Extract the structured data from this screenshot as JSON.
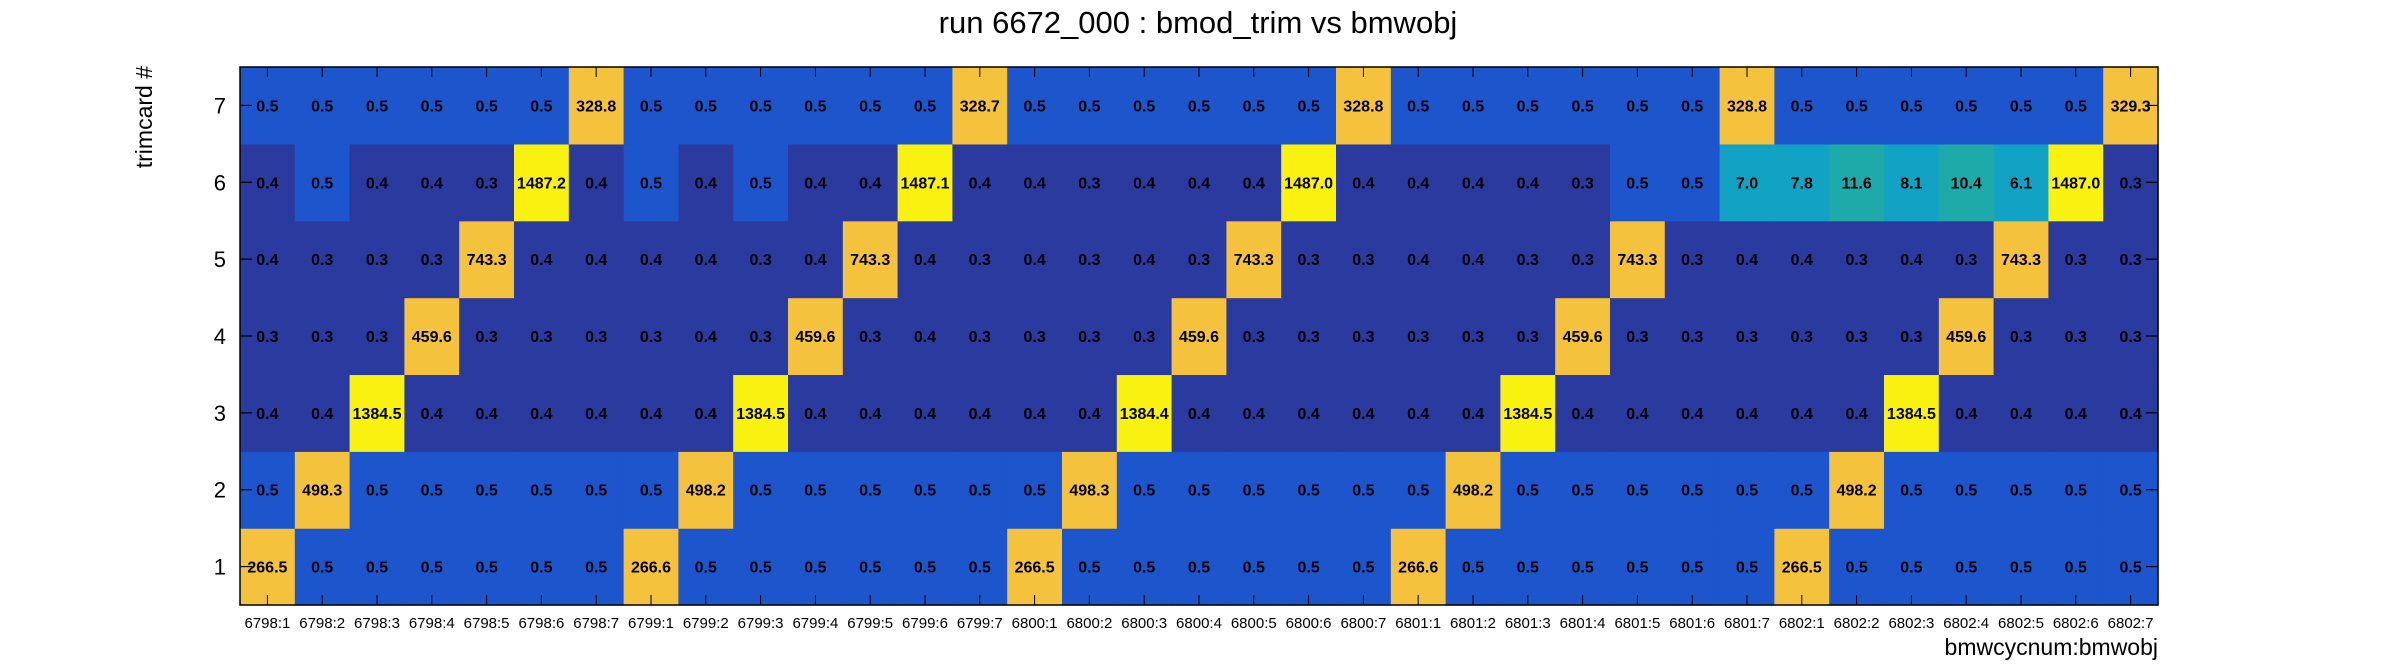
{
  "chart_data": {
    "type": "heatmap",
    "title": "run 6672_000 : bmod_trim vs bmwobj",
    "xlabel": "bmwcycnum:bmwobj",
    "ylabel": "trimcard #",
    "categories": [
      "6798:1",
      "6798:2",
      "6798:3",
      "6798:4",
      "6798:5",
      "6798:6",
      "6798:7",
      "6799:1",
      "6799:2",
      "6799:3",
      "6799:4",
      "6799:5",
      "6799:6",
      "6799:7",
      "6800:1",
      "6800:2",
      "6800:3",
      "6800:4",
      "6800:5",
      "6800:6",
      "6800:7",
      "6801:1",
      "6801:2",
      "6801:3",
      "6801:4",
      "6801:5",
      "6801:6",
      "6801:7",
      "6802:1",
      "6802:2",
      "6802:3",
      "6802:4",
      "6802:5",
      "6802:6",
      "6802:7"
    ],
    "y_categories": [
      "1",
      "2",
      "3",
      "4",
      "5",
      "6",
      "7"
    ],
    "values": [
      [
        "266.5",
        "0.5",
        "0.5",
        "0.5",
        "0.5",
        "0.5",
        "0.5",
        "266.6",
        "0.5",
        "0.5",
        "0.5",
        "0.5",
        "0.5",
        "0.5",
        "266.5",
        "0.5",
        "0.5",
        "0.5",
        "0.5",
        "0.5",
        "0.5",
        "266.6",
        "0.5",
        "0.5",
        "0.5",
        "0.5",
        "0.5",
        "0.5",
        "266.5",
        "0.5",
        "0.5",
        "0.5",
        "0.5",
        "0.5",
        "0.5"
      ],
      [
        "0.5",
        "498.3",
        "0.5",
        "0.5",
        "0.5",
        "0.5",
        "0.5",
        "0.5",
        "498.2",
        "0.5",
        "0.5",
        "0.5",
        "0.5",
        "0.5",
        "0.5",
        "498.3",
        "0.5",
        "0.5",
        "0.5",
        "0.5",
        "0.5",
        "0.5",
        "498.2",
        "0.5",
        "0.5",
        "0.5",
        "0.5",
        "0.5",
        "0.5",
        "498.2",
        "0.5",
        "0.5",
        "0.5",
        "0.5",
        "0.5"
      ],
      [
        "0.4",
        "0.4",
        "1384.5",
        "0.4",
        "0.4",
        "0.4",
        "0.4",
        "0.4",
        "0.4",
        "1384.5",
        "0.4",
        "0.4",
        "0.4",
        "0.4",
        "0.4",
        "0.4",
        "1384.4",
        "0.4",
        "0.4",
        "0.4",
        "0.4",
        "0.4",
        "0.4",
        "1384.5",
        "0.4",
        "0.4",
        "0.4",
        "0.4",
        "0.4",
        "0.4",
        "1384.5",
        "0.4",
        "0.4",
        "0.4",
        "0.4"
      ],
      [
        "0.3",
        "0.3",
        "0.3",
        "459.6",
        "0.3",
        "0.3",
        "0.3",
        "0.3",
        "0.4",
        "0.3",
        "459.6",
        "0.3",
        "0.4",
        "0.3",
        "0.3",
        "0.3",
        "0.3",
        "459.6",
        "0.3",
        "0.3",
        "0.3",
        "0.3",
        "0.3",
        "0.3",
        "459.6",
        "0.3",
        "0.3",
        "0.3",
        "0.3",
        "0.3",
        "0.3",
        "459.6",
        "0.3",
        "0.3",
        "0.3"
      ],
      [
        "0.4",
        "0.3",
        "0.3",
        "0.3",
        "743.3",
        "0.4",
        "0.4",
        "0.4",
        "0.4",
        "0.3",
        "0.4",
        "743.3",
        "0.4",
        "0.3",
        "0.4",
        "0.3",
        "0.4",
        "0.3",
        "743.3",
        "0.3",
        "0.3",
        "0.4",
        "0.4",
        "0.3",
        "0.3",
        "743.3",
        "0.3",
        "0.4",
        "0.4",
        "0.3",
        "0.4",
        "0.3",
        "743.3",
        "0.3",
        "0.3"
      ],
      [
        "0.4",
        "0.5",
        "0.4",
        "0.4",
        "0.3",
        "1487.2",
        "0.4",
        "0.5",
        "0.4",
        "0.5",
        "0.4",
        "0.4",
        "1487.1",
        "0.4",
        "0.4",
        "0.3",
        "0.4",
        "0.4",
        "0.4",
        "1487.0",
        "0.4",
        "0.4",
        "0.4",
        "0.4",
        "0.3",
        "0.5",
        "0.5",
        "7.0",
        "7.8",
        "11.6",
        "8.1",
        "10.4",
        "6.1",
        "1487.0",
        "0.3"
      ],
      [
        "0.5",
        "0.5",
        "0.5",
        "0.5",
        "0.5",
        "0.5",
        "328.8",
        "0.5",
        "0.5",
        "0.5",
        "0.5",
        "0.5",
        "0.5",
        "328.7",
        "0.5",
        "0.5",
        "0.5",
        "0.5",
        "0.5",
        "0.5",
        "328.8",
        "0.5",
        "0.5",
        "0.5",
        "0.5",
        "0.5",
        "0.5",
        "328.8",
        "0.5",
        "0.5",
        "0.5",
        "0.5",
        "0.5",
        "0.5",
        "329.3"
      ]
    ],
    "colors": {
      "low_dark": "#2a3a9e",
      "low_mid": "#1c55cc",
      "teal": "#12a3c4",
      "teal_green": "#1eaaa8",
      "orange_yellow": "#f4c23c",
      "bright_yellow": "#f9f10f",
      "frame": "#000000"
    }
  }
}
